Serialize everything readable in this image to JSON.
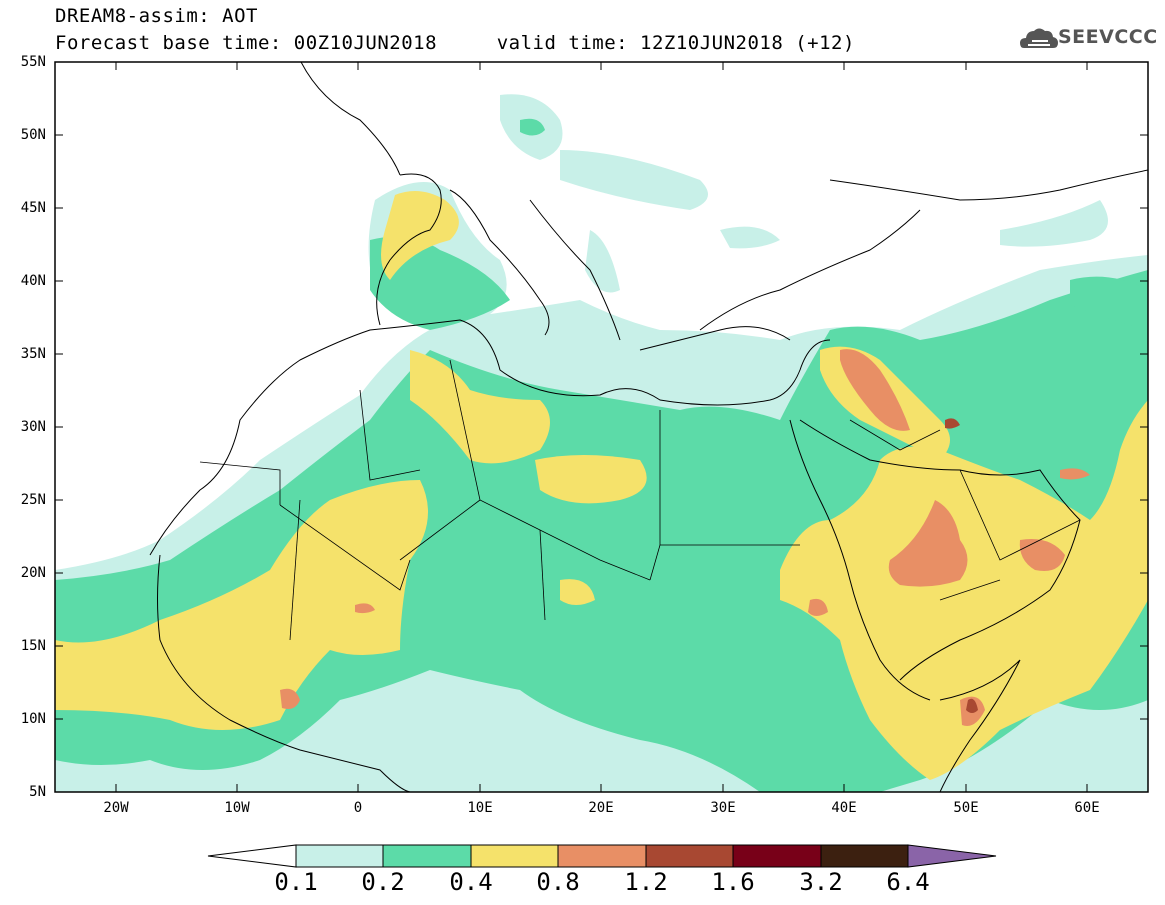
{
  "title": {
    "line1": "DREAM8-assim: AOT",
    "line2": "Forecast base time: 00Z10JUN2018     valid time: 12Z10JUN2018 (+12)"
  },
  "logo": {
    "text": "SEEVCCC",
    "icon": "cloud-icon"
  },
  "map": {
    "lat_labels": [
      "55N",
      "50N",
      "45N",
      "40N",
      "35N",
      "30N",
      "25N",
      "20N",
      "15N",
      "10N",
      "5N"
    ],
    "lon_labels": [
      "20W",
      "10W",
      "0",
      "10E",
      "20E",
      "30E",
      "40E",
      "50E",
      "60E"
    ],
    "lon_range": [
      -25,
      65
    ],
    "lat_range": [
      5,
      55
    ]
  },
  "colorbar": {
    "labels": [
      "0.1",
      "0.2",
      "0.4",
      "0.8",
      "1.2",
      "1.6",
      "3.2",
      "6.4"
    ],
    "colors": [
      "#ffffff",
      "#c8f0e8",
      "#5cdba8",
      "#f5e26b",
      "#e88f65",
      "#a84832",
      "#780018",
      "#3c2010",
      "#8a64a8"
    ]
  }
}
